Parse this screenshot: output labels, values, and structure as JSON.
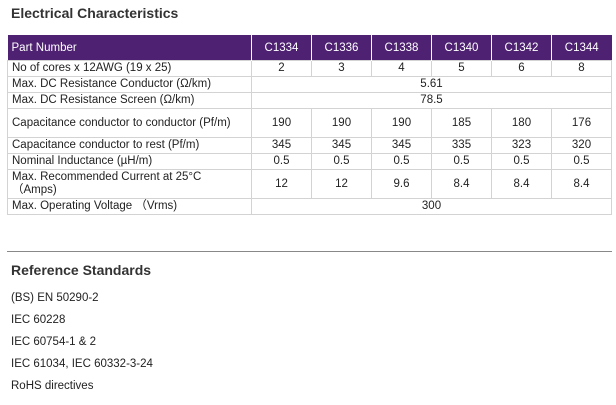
{
  "electrical": {
    "title": "Electrical Characteristics",
    "header": {
      "part_number": "Part Number",
      "columns": [
        "C1334",
        "C1336",
        "C1338",
        "C1340",
        "C1342",
        "C1344"
      ]
    },
    "rows": [
      {
        "label": "No of cores x 12AWG (19 x 25)",
        "values": [
          "2",
          "3",
          "4",
          "5",
          "6",
          "8"
        ]
      },
      {
        "label": "Max. DC Resistance Conductor (Ω/km)",
        "shared": "5.61"
      },
      {
        "label": "Max. DC Resistance Screen (Ω/km)",
        "shared": "78.5"
      },
      {
        "label": "Capacitance conductor to conductor (Pf/m)",
        "values": [
          "190",
          "190",
          "190",
          "185",
          "180",
          "176"
        ]
      },
      {
        "label": "Capacitance conductor to rest (Pf/m)",
        "values": [
          "345",
          "345",
          "345",
          "335",
          "323",
          "320"
        ]
      },
      {
        "label": "Nominal Inductance (µH/m)",
        "values": [
          "0.5",
          "0.5",
          "0.5",
          "0.5",
          "0.5",
          "0.5"
        ]
      },
      {
        "label": "Max. Recommended Current at 25°C （Amps)",
        "values": [
          "12",
          "12",
          "9.6",
          "8.4",
          "8.4",
          "8.4"
        ]
      },
      {
        "label": "Max. Operating Voltage （Vrms)",
        "shared": "300"
      }
    ]
  },
  "reference": {
    "title": "Reference Standards",
    "items": [
      "(BS) EN 50290-2",
      "IEC 60228",
      "IEC 60754-1 & 2",
      "IEC 61034, IEC 60332-3-24",
      "RoHS directives"
    ]
  }
}
